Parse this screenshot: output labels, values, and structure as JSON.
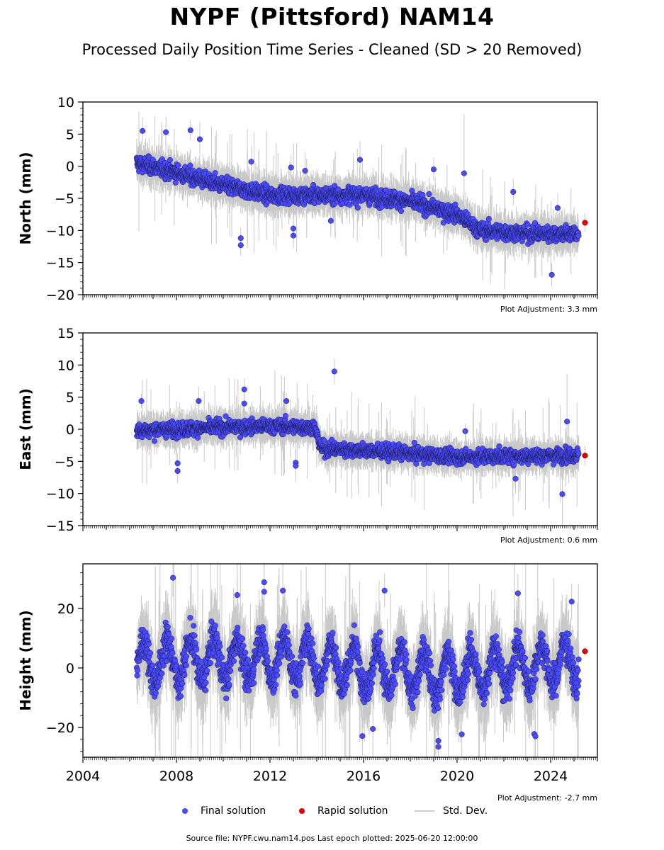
{
  "title": "NYPF (Pittsford) NAM14",
  "subtitle": "Processed Daily Position Time Series - Cleaned (SD > 20 Removed)",
  "legend": {
    "final": "Final solution",
    "rapid": "Rapid solution",
    "std": "Std. Dev."
  },
  "source": "Source file: NYPF.cwu.nam14.pos  Last epoch plotted: 2025-06-20 12:00:00",
  "colors": {
    "final": "#4a4aff",
    "rapid": "#e00000",
    "std": "#c8c8c8"
  },
  "chart_data": [
    {
      "type": "scatter",
      "ylabel": "North (mm)",
      "ylim": [
        -20,
        10
      ],
      "yticks": [
        10,
        5,
        0,
        -5,
        -10,
        -15,
        -20
      ],
      "xlim": [
        2004,
        2026
      ],
      "xticks": [
        2004,
        2008,
        2012,
        2016,
        2020,
        2024
      ],
      "adjustment": "Plot Adjustment: 3.3 mm",
      "trend": [
        [
          2006.3,
          0.5
        ],
        [
          2008,
          -1.0
        ],
        [
          2010,
          -3.0
        ],
        [
          2012,
          -4.5
        ],
        [
          2014,
          -4.5
        ],
        [
          2016,
          -4.5
        ],
        [
          2018,
          -5.5
        ],
        [
          2020,
          -7.5
        ],
        [
          2021,
          -10.0
        ],
        [
          2023,
          -10.5
        ],
        [
          2025.2,
          -10.5
        ]
      ],
      "spread": 1.6,
      "outliers": [
        [
          2006.55,
          5.5
        ],
        [
          2007.55,
          5.3
        ],
        [
          2008.6,
          5.6
        ],
        [
          2009.0,
          4.2
        ],
        [
          2010.75,
          -11.2
        ],
        [
          2010.75,
          -12.3
        ],
        [
          2011.2,
          0.7
        ],
        [
          2012.9,
          -0.2
        ],
        [
          2013.0,
          -9.7
        ],
        [
          2013.0,
          -10.8
        ],
        [
          2013.5,
          -0.7
        ],
        [
          2015.85,
          1.0
        ],
        [
          2014.6,
          -8.5
        ],
        [
          2019.0,
          -0.5
        ],
        [
          2020.3,
          -1.1
        ],
        [
          2022.4,
          -4.0
        ],
        [
          2024.05,
          -16.9
        ],
        [
          2024.3,
          -6.5
        ]
      ],
      "rapid": [
        [
          2025.47,
          -8.8
        ]
      ]
    },
    {
      "type": "scatter",
      "ylabel": "East (mm)",
      "ylim": [
        -15,
        15
      ],
      "yticks": [
        15,
        10,
        5,
        0,
        -5,
        -10,
        -15
      ],
      "xlim": [
        2004,
        2026
      ],
      "xticks": [
        2004,
        2008,
        2012,
        2016,
        2020,
        2024
      ],
      "adjustment": "Plot Adjustment: 0.6 mm",
      "trend": [
        [
          2006.3,
          -0.2
        ],
        [
          2008,
          0.0
        ],
        [
          2010,
          0.3
        ],
        [
          2012,
          0.5
        ],
        [
          2013.9,
          0.3
        ],
        [
          2014.2,
          -3.0
        ],
        [
          2016,
          -3.3
        ],
        [
          2018,
          -3.8
        ],
        [
          2020,
          -4.3
        ],
        [
          2022,
          -4.2
        ],
        [
          2025.2,
          -4.0
        ]
      ],
      "spread": 1.4,
      "outliers": [
        [
          2006.5,
          4.4
        ],
        [
          2008.05,
          -6.5
        ],
        [
          2008.05,
          -5.3
        ],
        [
          2008.95,
          4.4
        ],
        [
          2010.9,
          6.2
        ],
        [
          2010.9,
          4.0
        ],
        [
          2012.7,
          4.4
        ],
        [
          2013.1,
          -5.2
        ],
        [
          2013.1,
          -5.7
        ],
        [
          2014.75,
          9.0
        ],
        [
          2020.35,
          -0.3
        ],
        [
          2022.5,
          -7.7
        ],
        [
          2024.5,
          -10.1
        ],
        [
          2024.7,
          1.2
        ]
      ],
      "rapid": [
        [
          2025.47,
          -4.1
        ]
      ]
    },
    {
      "type": "scatter",
      "ylabel": "Height (mm)",
      "ylim": [
        -30,
        35
      ],
      "yticks": [
        20,
        0,
        -20
      ],
      "xlim": [
        2004,
        2026
      ],
      "xticks": [
        2004,
        2008,
        2012,
        2016,
        2020,
        2024
      ],
      "xticklabels": [
        "2004",
        "2008",
        "2012",
        "2016",
        "2020",
        "2024"
      ],
      "adjustment": "Plot Adjustment: -2.7 mm",
      "trend": [
        [
          2006.3,
          2.0
        ],
        [
          2010,
          3.0
        ],
        [
          2013,
          3.0
        ],
        [
          2016,
          0.0
        ],
        [
          2019,
          -2.0
        ],
        [
          2020,
          -2.0
        ],
        [
          2022,
          0.0
        ],
        [
          2025.2,
          2.0
        ]
      ],
      "spread": 7.0,
      "seasonal_amplitude": 7.0,
      "outliers": [
        [
          2007.85,
          30.3
        ],
        [
          2010.6,
          24.5
        ],
        [
          2011.75,
          28.8
        ],
        [
          2011.75,
          25.6
        ],
        [
          2012.55,
          26.0
        ],
        [
          2016.9,
          26.0
        ],
        [
          2022.6,
          25.1
        ],
        [
          2019.2,
          -26.5
        ],
        [
          2019.2,
          -24.5
        ],
        [
          2020.2,
          -22.3
        ],
        [
          2023.3,
          -22.2
        ],
        [
          2023.35,
          -23.0
        ],
        [
          2015.95,
          -22.9
        ],
        [
          2016.4,
          -20.5
        ],
        [
          2024.9,
          22.3
        ],
        [
          2025.1,
          -5.0
        ],
        [
          2025.2,
          2.9
        ]
      ],
      "rapid": [
        [
          2025.47,
          5.6
        ]
      ]
    }
  ]
}
